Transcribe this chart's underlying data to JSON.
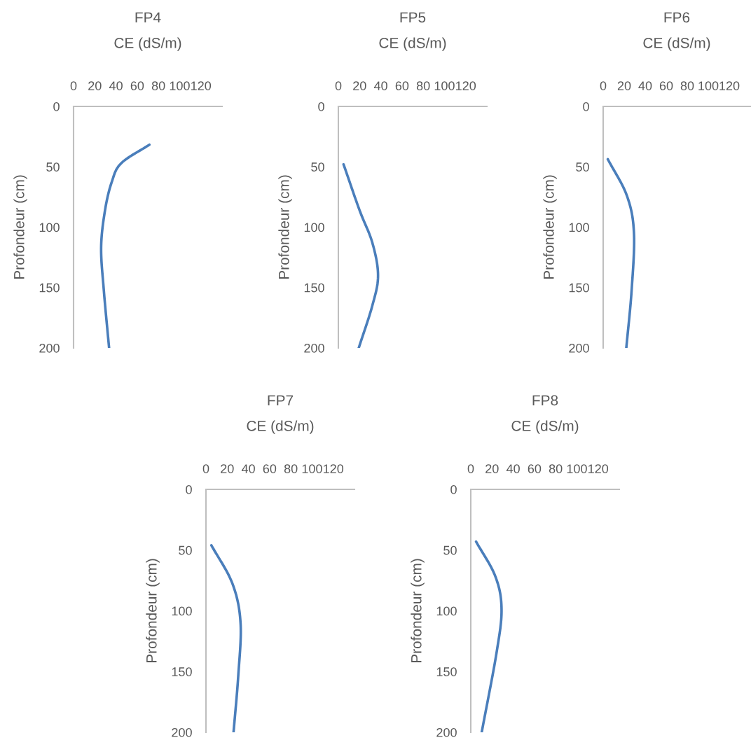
{
  "chart_data": [
    {
      "type": "line",
      "title": "FP4",
      "xlabel": "CE (dS/m)",
      "ylabel": "Profondeur (cm)",
      "xlim": [
        0,
        140
      ],
      "xticks": [
        0,
        20,
        40,
        60,
        80,
        100,
        120
      ],
      "ylim": [
        200,
        0
      ],
      "yticks": [
        0,
        50,
        100,
        150,
        200
      ],
      "grid": false,
      "legend": false,
      "series": [
        {
          "color": "#4a7ebb",
          "x": [
            71.5,
            45,
            36,
            29.7,
            26,
            28.6,
            33.5
          ],
          "values": [
            31.7,
            47,
            62.6,
            85.8,
            116.7,
            153,
            200
          ]
        }
      ]
    },
    {
      "type": "line",
      "title": "FP5",
      "xlabel": "CE (dS/m)",
      "ylabel": "Profondeur (cm)",
      "xlim": [
        0,
        140
      ],
      "xticks": [
        0,
        20,
        40,
        60,
        80,
        100,
        120
      ],
      "ylim": [
        200,
        0
      ],
      "yticks": [
        0,
        50,
        100,
        150,
        200
      ],
      "grid": false,
      "legend": false,
      "series": [
        {
          "color": "#4a7ebb",
          "x": [
            4.9,
            19.9,
            32,
            37.4,
            32,
            19.2
          ],
          "values": [
            48,
            85.8,
            112.8,
            140,
            165,
            200
          ]
        }
      ]
    },
    {
      "type": "line",
      "title": "FP6",
      "xlabel": "CE (dS/m)",
      "ylabel": "Profondeur (cm)",
      "xlim": [
        0,
        140
      ],
      "xticks": [
        0,
        20,
        40,
        60,
        80,
        100,
        120
      ],
      "ylim": [
        200,
        0
      ],
      "yticks": [
        0,
        50,
        100,
        150,
        200
      ],
      "grid": false,
      "legend": false,
      "series": [
        {
          "color": "#4a7ebb",
          "x": [
            4.4,
            22.6,
            29.3,
            27,
            22
          ],
          "values": [
            43.7,
            74,
            105,
            153,
            200
          ]
        }
      ]
    },
    {
      "type": "line",
      "title": "FP7",
      "xlabel": "CE (dS/m)",
      "ylabel": "Profondeur (cm)",
      "xlim": [
        0,
        140
      ],
      "xticks": [
        0,
        20,
        40,
        60,
        80,
        100,
        120
      ],
      "ylim": [
        200,
        0
      ],
      "yticks": [
        0,
        50,
        100,
        150,
        200
      ],
      "grid": false,
      "legend": false,
      "series": [
        {
          "color": "#4a7ebb",
          "x": [
            5.1,
            24.9,
            32.6,
            30.4,
            26
          ],
          "values": [
            46,
            77.5,
            110,
            154,
            200
          ]
        }
      ]
    },
    {
      "type": "line",
      "title": "FP8",
      "xlabel": "CE (dS/m)",
      "ylabel": "Profondeur (cm)",
      "xlim": [
        0,
        140
      ],
      "xticks": [
        0,
        20,
        40,
        60,
        80,
        100,
        120
      ],
      "ylim": [
        200,
        0
      ],
      "yticks": [
        0,
        50,
        100,
        150,
        200
      ],
      "grid": false,
      "legend": false,
      "series": [
        {
          "color": "#4a7ebb",
          "x": [
            5,
            23.1,
            29,
            24.2,
            10.3
          ],
          "values": [
            43,
            71.5,
            98.5,
            135,
            200
          ]
        }
      ]
    }
  ]
}
